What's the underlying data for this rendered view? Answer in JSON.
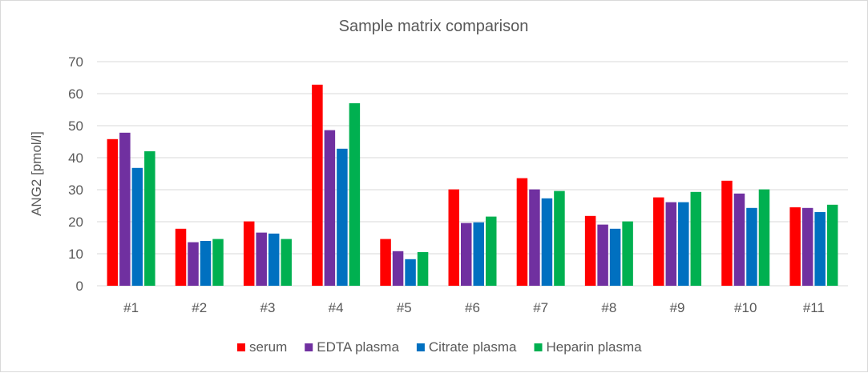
{
  "chart_data": {
    "type": "bar",
    "title": "Sample matrix comparison",
    "xlabel": "",
    "ylabel": "ANG2 [pmol/l]",
    "ylim": [
      0,
      70
    ],
    "yticks": [
      0,
      10,
      20,
      30,
      40,
      50,
      60,
      70
    ],
    "grid": true,
    "legend_position": "bottom",
    "categories": [
      "#1",
      "#2",
      "#3",
      "#4",
      "#5",
      "#6",
      "#7",
      "#8",
      "#9",
      "#10",
      "#11"
    ],
    "series": [
      {
        "name": "serum",
        "color": "#ff0000",
        "values": [
          45.8,
          17.8,
          20.1,
          62.8,
          14.6,
          30.1,
          33.6,
          21.8,
          27.6,
          32.8,
          24.5
        ]
      },
      {
        "name": "EDTA plasma",
        "color": "#7030a0",
        "values": [
          47.8,
          13.6,
          16.6,
          48.6,
          10.8,
          19.6,
          30.1,
          19.1,
          26.1,
          28.8,
          24.3
        ]
      },
      {
        "name": "Citrate plasma",
        "color": "#0070c0",
        "values": [
          36.8,
          14.0,
          16.3,
          42.8,
          8.3,
          19.8,
          27.3,
          17.8,
          26.1,
          24.3,
          23.0
        ]
      },
      {
        "name": "Heparin plasma",
        "color": "#00b050",
        "values": [
          42.0,
          14.6,
          14.6,
          57.0,
          10.5,
          21.6,
          29.6,
          20.1,
          29.3,
          30.1,
          25.3
        ]
      }
    ]
  }
}
